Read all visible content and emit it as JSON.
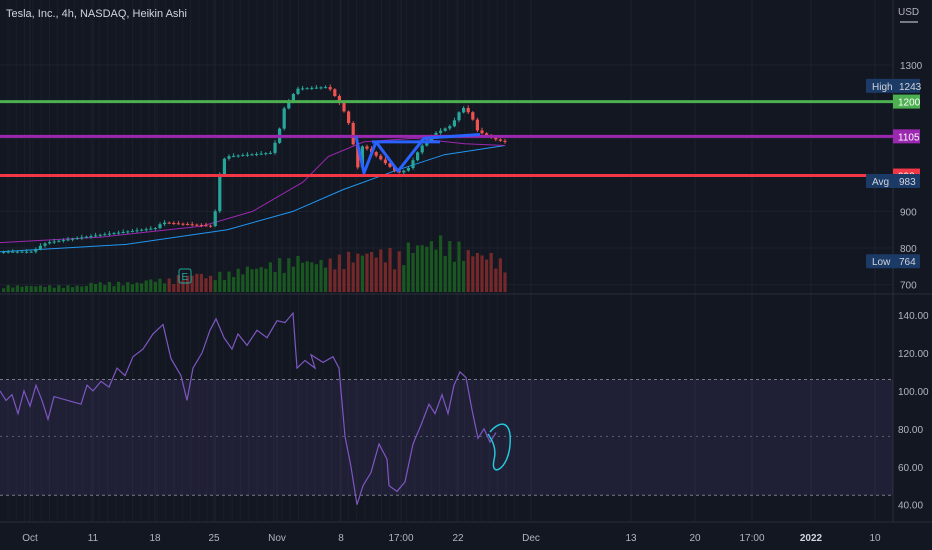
{
  "header": {
    "title": "Tesla, Inc., 4h, NASDAQ, Heikin Ashi",
    "currency": "USD"
  },
  "colors": {
    "background": "#131722",
    "bull": "#26a69a",
    "bear": "#ef5350",
    "green_line": "#4caf50",
    "purple_line": "#9c27b0",
    "red_line": "#f23645",
    "ma_fast": "#9c27b0",
    "ma_slow": "#2196f3",
    "rsi_line": "#7e57c2",
    "drawing_blue": "#2962ff"
  },
  "chart_data": [
    {
      "type": "candlestick",
      "name": "price",
      "x_labels": [
        "Oct",
        "11",
        "18",
        "25",
        "Nov",
        "8",
        "17:00",
        "22",
        "Dec",
        "13",
        "20",
        "17:00",
        "2022",
        "10"
      ],
      "y_ticks": [
        700,
        800,
        900,
        1000,
        1100,
        1200,
        1300
      ],
      "y_tick_labels": [
        "700",
        "800",
        "900",
        "",
        "",
        "",
        "1300"
      ],
      "ylim": [
        680,
        1390
      ],
      "horizontal_lines": [
        {
          "label": "1200",
          "value": 1200,
          "color": "#4caf50"
        },
        {
          "label": "1105",
          "value": 1105,
          "color": "#9c27b0"
        },
        {
          "label": "998",
          "value": 998,
          "color": "#f23645"
        }
      ],
      "stats": [
        {
          "label": "High",
          "value": "1243",
          "price": 1243
        },
        {
          "label": "Avg",
          "value": "983",
          "price": 983
        },
        {
          "label": "Low",
          "value": "764",
          "price": 764
        }
      ],
      "anchors": [
        [
          "Oct",
          1,
          790
        ],
        [
          "Oct",
          8,
          805
        ],
        [
          "Oct",
          15,
          815
        ],
        [
          "11",
          2,
          835
        ],
        [
          "18",
          0,
          855
        ],
        [
          "18",
          5,
          870
        ],
        [
          "25",
          -4,
          860
        ],
        [
          "25",
          0,
          905
        ],
        [
          "25",
          3,
          980
        ],
        [
          "25",
          6,
          1030
        ],
        [
          "25",
          10,
          1050
        ],
        [
          "Nov",
          -8,
          1060
        ],
        [
          "Nov",
          0,
          1110
        ],
        [
          "Nov",
          4,
          1175
        ],
        [
          "Nov",
          9,
          1195
        ],
        [
          "Nov",
          18,
          1235
        ],
        [
          "8",
          -14,
          1240
        ],
        [
          "8",
          -4,
          1200
        ],
        [
          "8",
          2,
          1170
        ],
        [
          "8",
          9,
          1120
        ],
        [
          "8",
          14,
          1005
        ],
        [
          "8",
          20,
          1080
        ],
        [
          "8",
          30,
          1060
        ],
        [
          "17:00",
          -5,
          1005
        ],
        [
          "17:00",
          5,
          1015
        ],
        [
          "17:00",
          18,
          1075
        ],
        [
          "17:00",
          30,
          1110
        ],
        [
          "22",
          -8,
          1135
        ],
        [
          "22",
          -2,
          1165
        ],
        [
          "22",
          3,
          1185
        ],
        [
          "22",
          11,
          1165
        ],
        [
          "22",
          18,
          1120
        ],
        [
          "22",
          28,
          1105
        ],
        [
          "22",
          38,
          1095
        ],
        [
          "22",
          45,
          1090
        ]
      ],
      "volume_profile": [
        2,
        2,
        2,
        2,
        2,
        2,
        3,
        3,
        3,
        3,
        4,
        4,
        5,
        6,
        5,
        6,
        7,
        8,
        9,
        10,
        11,
        10,
        10,
        11,
        12,
        13,
        13,
        12,
        15,
        16,
        17,
        15,
        13,
        12,
        10
      ],
      "earnings_label": "E",
      "ma_fast": [
        [
          0,
          815
        ],
        [
          0.2,
          830
        ],
        [
          0.4,
          860
        ],
        [
          0.5,
          900
        ],
        [
          0.6,
          980
        ],
        [
          0.65,
          1050
        ],
        [
          0.72,
          1090
        ],
        [
          0.82,
          1100
        ],
        [
          0.92,
          1085
        ],
        [
          1.0,
          1080
        ]
      ],
      "ma_slow": [
        [
          0,
          790
        ],
        [
          0.25,
          810
        ],
        [
          0.45,
          850
        ],
        [
          0.58,
          900
        ],
        [
          0.68,
          960
        ],
        [
          0.78,
          1010
        ],
        [
          0.88,
          1055
        ],
        [
          1.0,
          1080
        ]
      ]
    },
    {
      "type": "line",
      "name": "oscillator",
      "y_ticks": [
        40,
        60,
        80,
        100,
        120,
        140
      ],
      "y_tick_labels": [
        "40.00",
        "60.00",
        "80.00",
        "100.00",
        "120.00",
        "140.00"
      ],
      "ylim": [
        33,
        150
      ],
      "band": [
        45,
        106
      ],
      "mid": 76,
      "anchors": [
        [
          "Oct",
          -30,
          100
        ],
        [
          "Oct",
          -24,
          95
        ],
        [
          "Oct",
          -18,
          98
        ],
        [
          "Oct",
          -12,
          88
        ],
        [
          "Oct",
          -6,
          100
        ],
        [
          "Oct",
          0,
          92
        ],
        [
          "Oct",
          6,
          103
        ],
        [
          "Oct",
          12,
          95
        ],
        [
          "Oct",
          18,
          85
        ],
        [
          "Oct",
          24,
          97
        ],
        [
          "11",
          -12,
          93
        ],
        [
          "11",
          -6,
          103
        ],
        [
          "11",
          0,
          100
        ],
        [
          "11",
          8,
          105
        ],
        [
          "11",
          16,
          102
        ],
        [
          "11",
          24,
          112
        ],
        [
          "11",
          32,
          108
        ],
        [
          "18",
          -22,
          118
        ],
        [
          "18",
          -12,
          122
        ],
        [
          "18",
          -2,
          130
        ],
        [
          "18",
          8,
          135
        ],
        [
          "18",
          16,
          117
        ],
        [
          "18",
          26,
          108
        ],
        [
          "18",
          32,
          95
        ],
        [
          "18",
          38,
          112
        ],
        [
          "25",
          -12,
          120
        ],
        [
          "25",
          -4,
          132
        ],
        [
          "25",
          2,
          138
        ],
        [
          "25",
          10,
          128
        ],
        [
          "25",
          18,
          122
        ],
        [
          "25",
          24,
          130
        ],
        [
          "Nov",
          -30,
          124
        ],
        [
          "Nov",
          -20,
          132
        ],
        [
          "Nov",
          -10,
          128
        ],
        [
          "Nov",
          0,
          137
        ],
        [
          "Nov",
          8,
          136
        ],
        [
          "Nov",
          16,
          141
        ],
        [
          "Nov",
          20,
          112
        ],
        [
          "Nov",
          28,
          116
        ],
        [
          "Nov",
          38,
          112
        ],
        [
          "8",
          -30,
          119
        ],
        [
          "8",
          -18,
          115
        ],
        [
          "8",
          -8,
          118
        ],
        [
          "8",
          -2,
          112
        ],
        [
          "8",
          4,
          76
        ],
        [
          "8",
          10,
          60
        ],
        [
          "8",
          16,
          40
        ],
        [
          "8",
          22,
          50
        ],
        [
          "8",
          30,
          57
        ],
        [
          "8",
          38,
          72
        ],
        [
          "8",
          46,
          64
        ],
        [
          "17:00",
          -12,
          50
        ],
        [
          "17:00",
          -4,
          47
        ],
        [
          "17:00",
          4,
          52
        ],
        [
          "17:00",
          12,
          72
        ],
        [
          "17:00",
          20,
          82
        ],
        [
          "17:00",
          28,
          93
        ],
        [
          "17:00",
          34,
          88
        ],
        [
          "22",
          -16,
          98
        ],
        [
          "22",
          -10,
          88
        ],
        [
          "22",
          -4,
          103
        ],
        [
          "22",
          2,
          110
        ],
        [
          "22",
          8,
          107
        ],
        [
          "22",
          14,
          90
        ],
        [
          "22",
          20,
          75
        ],
        [
          "22",
          26,
          80
        ],
        [
          "22",
          32,
          73
        ],
        [
          "22",
          38,
          78
        ]
      ]
    }
  ]
}
